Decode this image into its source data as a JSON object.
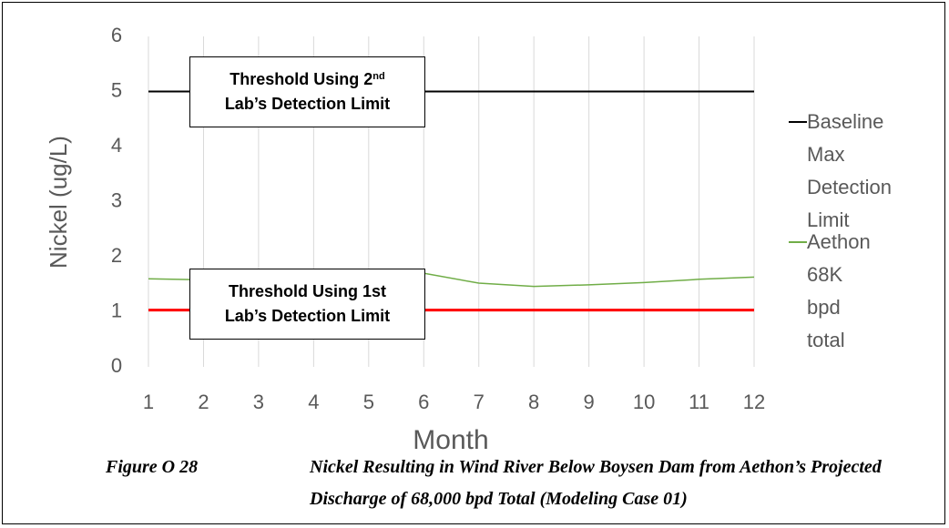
{
  "chart_data": {
    "type": "line",
    "x_label": "Month",
    "y_label": "Nickel (ug/L)",
    "x": [
      1,
      2,
      3,
      4,
      5,
      6,
      7,
      8,
      9,
      10,
      11,
      12
    ],
    "xlim": [
      1,
      12
    ],
    "xticks": [
      1,
      2,
      3,
      4,
      5,
      6,
      7,
      8,
      9,
      10,
      11,
      12
    ],
    "ylim": [
      0,
      6
    ],
    "yticks": [
      0,
      1,
      2,
      3,
      4,
      5,
      6
    ],
    "grid": "x",
    "legend": "right",
    "series": [
      {
        "name": "Baseline Max Detection Limit",
        "color": "#000000",
        "values": [
          5,
          5,
          5,
          5,
          5,
          5,
          5,
          5,
          5,
          5,
          5,
          5
        ]
      },
      {
        "name": "Aethon 68K bpd total",
        "color": "#70ad47",
        "values": [
          1.6,
          1.58,
          1.6,
          1.65,
          1.7,
          1.7,
          1.52,
          1.46,
          1.49,
          1.53,
          1.59,
          1.63
        ]
      }
    ],
    "annotations": [
      {
        "line1": "Threshold Using 2",
        "line1_sup": "nd",
        "line2": "Lab’s Detection Limit",
        "value": 5
      },
      {
        "line1": "Threshold Using 1st",
        "line2": "Lab’s Detection Limit",
        "value": 1.03,
        "color": "#ff0000"
      }
    ],
    "caption_label": "Figure O 28",
    "caption": "Nickel Resulting in Wind River Below Boysen Dam from Aethon’s Projected Discharge of 68,000 bpd Total (Modeling Case 01)"
  }
}
